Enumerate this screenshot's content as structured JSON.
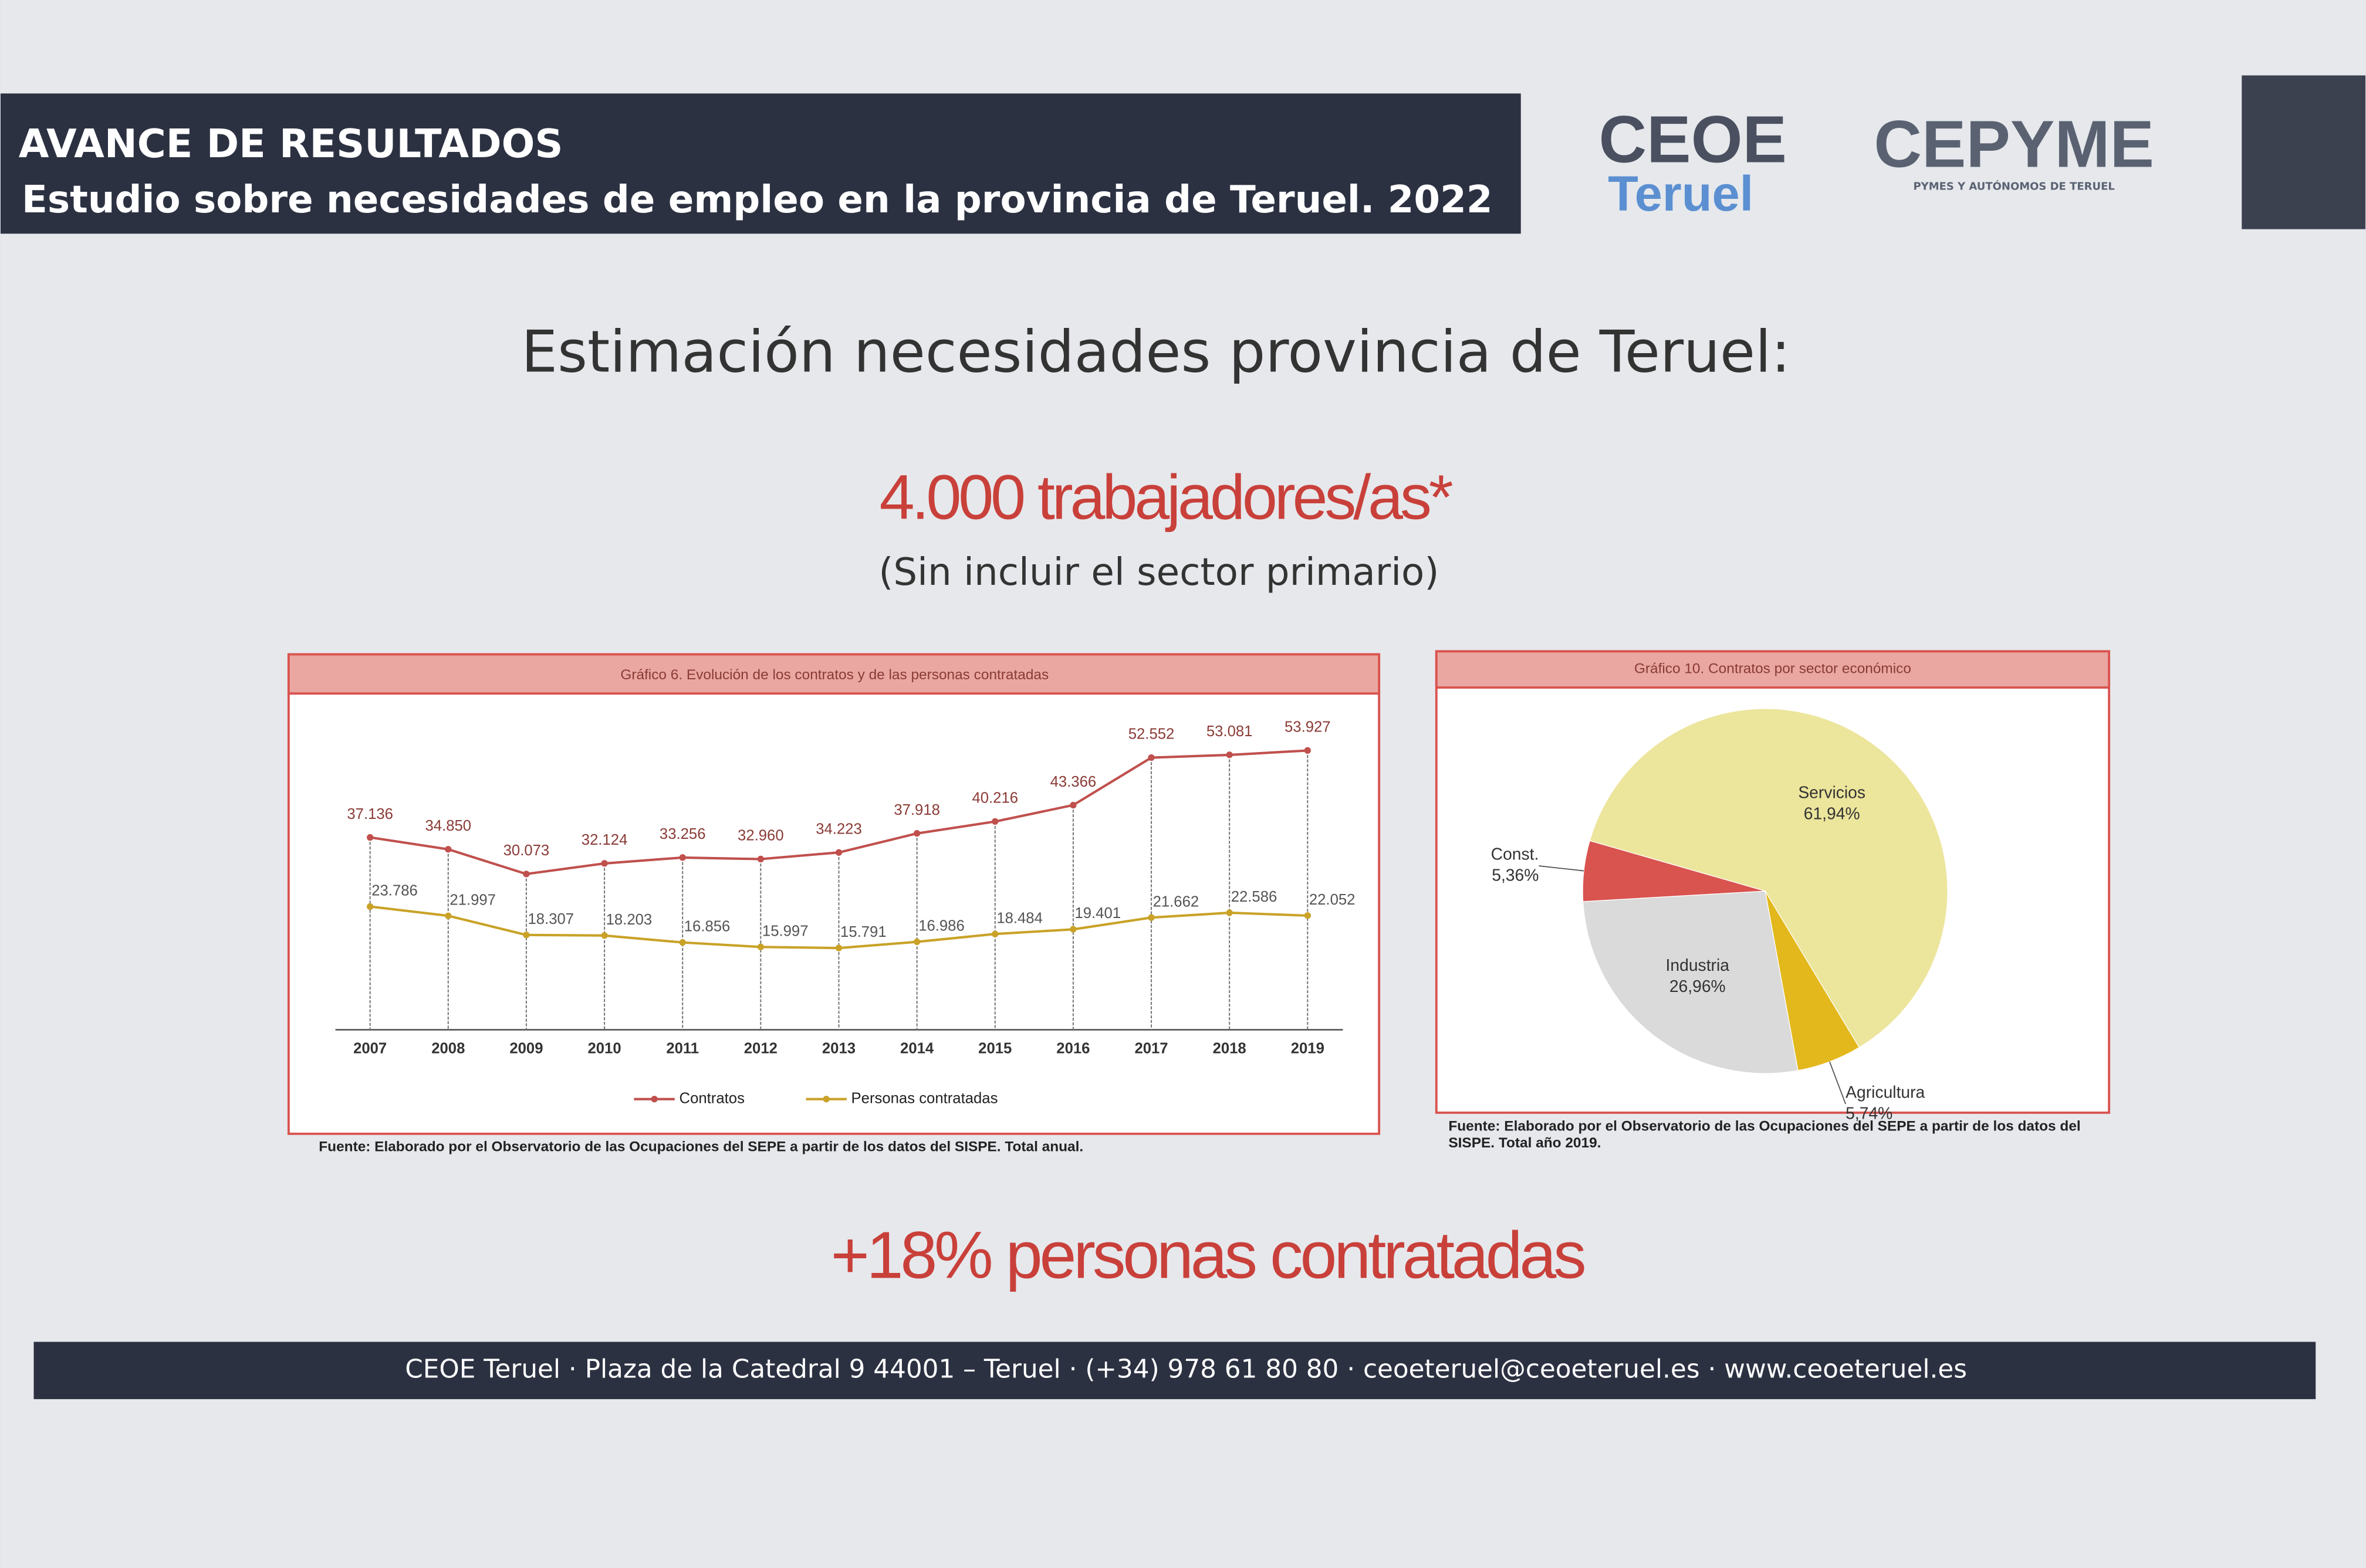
{
  "header": {
    "label": "AVANCE DE RESULTADOS",
    "title": "Estudio sobre necesidades de empleo en la provincia de Teruel. 2022"
  },
  "logos": {
    "ceoe": "CEOE",
    "ceoe_sub": "Teruel",
    "cepyme": "CEPYME",
    "cepyme_sub": "PYMES Y AUTÓNOMOS DE TERUEL"
  },
  "headline": "Estimación necesidades provincia de Teruel:",
  "estimate": "4.000 trabajadores/as*",
  "estimate_note": "(Sin incluir el sector primario)",
  "chart_data": [
    {
      "type": "line",
      "title": "Gráfico 6. Evolución de los contratos y de las personas contratadas",
      "categories": [
        "2007",
        "2008",
        "2009",
        "2010",
        "2011",
        "2012",
        "2013",
        "2014",
        "2015",
        "2016",
        "2017",
        "2018",
        "2019"
      ],
      "series": [
        {
          "name": "Contratos",
          "color": "#c0504d",
          "values": [
            37136,
            34850,
            30073,
            32124,
            33256,
            32960,
            34223,
            37918,
            40216,
            43366,
            52552,
            53081,
            53927
          ],
          "value_labels": [
            "37.136",
            "34.850",
            "30.073",
            "32.124",
            "33.256",
            "32.960",
            "34.223",
            "37.918",
            "40.216",
            "43.366",
            "52.552",
            "53.081",
            "53.927"
          ]
        },
        {
          "name": "Personas contratadas",
          "color": "#c9a227",
          "values": [
            23786,
            21997,
            18307,
            18203,
            16856,
            15997,
            15791,
            16986,
            18484,
            19401,
            21662,
            22586,
            22052
          ],
          "value_labels": [
            "23.786",
            "21.997",
            "18.307",
            "18.203",
            "16.856",
            "15.997",
            "15.791",
            "16.986",
            "18.484",
            "19.401",
            "21.662",
            "22.586",
            "22.052"
          ]
        }
      ],
      "source": "Fuente: Elaborado por el Observatorio de las Ocupaciones del SEPE a partir de los datos del SISPE. Total anual."
    },
    {
      "type": "pie",
      "title": "Gráfico 10. Contratos por sector económico",
      "categories": [
        "Servicios",
        "Agricultura",
        "Industria",
        "Const."
      ],
      "values": [
        61.94,
        5.74,
        26.96,
        5.36
      ],
      "value_labels": [
        "61,94%",
        "5,74%",
        "26,96%",
        "5,36%"
      ],
      "colors": [
        "#ece59c",
        "#e2b81c",
        "#dadada",
        "#d9534f"
      ],
      "source": "Fuente: Elaborado por el Observatorio de las Ocupaciones del SEPE a partir de los datos del SISPE. Total año 2019."
    }
  ],
  "highlight": "+18% personas contratadas",
  "footer": "CEOE Teruel · Plaza de la Catedral 9  44001 – Teruel · (+34) 978 61 80 80 · ceoeteruel@ceoeteruel.es · www.ceoeteruel.es"
}
